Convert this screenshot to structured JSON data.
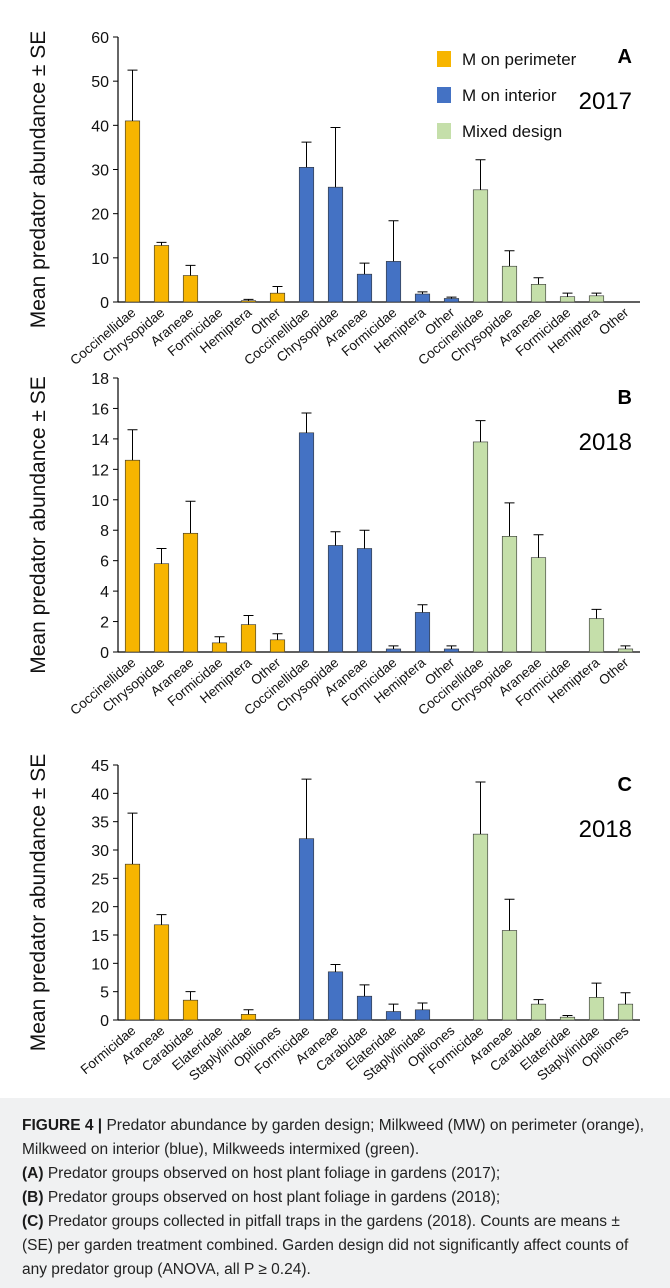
{
  "chart_data": [
    {
      "type": "bar",
      "panel": "A",
      "year": "2017",
      "ylabel": "Mean predator abundance ± SE",
      "ylim": [
        0,
        60
      ],
      "yticks": [
        0,
        10,
        20,
        30,
        40,
        50,
        60
      ],
      "legend": "top-right",
      "series": [
        {
          "name": "M on perimeter",
          "color": "#f7b500",
          "categories": [
            "Coccinellidae",
            "Chrysopidae",
            "Araneae",
            "Formicidae",
            "Hemiptera",
            "Other"
          ],
          "values": [
            41,
            12.8,
            6,
            0,
            0.3,
            2
          ],
          "errors": [
            11.5,
            0.7,
            2.3,
            0,
            0.3,
            1.5
          ]
        },
        {
          "name": "M on interior",
          "color": "#4472c4",
          "categories": [
            "Coccinellidae",
            "Chrysopidae",
            "Araneae",
            "Formicidae",
            "Hemiptera",
            "Other"
          ],
          "values": [
            30.5,
            26,
            6.3,
            9.2,
            1.8,
            0.8
          ],
          "errors": [
            5.7,
            13.5,
            2.5,
            9.2,
            0.5,
            0.3
          ]
        },
        {
          "name": "Mixed design",
          "color": "#c5dfaa",
          "categories": [
            "Coccinellidae",
            "Chrysopidae",
            "Araneae",
            "Formicidae",
            "Hemiptera",
            "Other"
          ],
          "values": [
            25.4,
            8.1,
            4,
            1.2,
            1.4,
            0
          ],
          "errors": [
            6.8,
            3.5,
            1.5,
            0.8,
            0.6,
            0
          ]
        }
      ]
    },
    {
      "type": "bar",
      "panel": "B",
      "year": "2018",
      "ylabel": "Mean predator abundance ± SE",
      "ylim": [
        0,
        18
      ],
      "yticks": [
        0,
        2,
        4,
        6,
        8,
        10,
        12,
        14,
        16,
        18
      ],
      "series": [
        {
          "color": "#f7b500",
          "categories": [
            "Coccinellidae",
            "Chrysopidae",
            "Araneae",
            "Formicidae",
            "Hemiptera",
            "Other"
          ],
          "values": [
            12.6,
            5.8,
            7.8,
            0.6,
            1.8,
            0.8
          ],
          "errors": [
            2.0,
            1.0,
            2.1,
            0.4,
            0.6,
            0.4
          ]
        },
        {
          "color": "#4472c4",
          "categories": [
            "Coccinellidae",
            "Chrysopidae",
            "Araneae",
            "Formicidae",
            "Hemiptera",
            "Other"
          ],
          "values": [
            14.4,
            7.0,
            6.8,
            0.2,
            2.6,
            0.2
          ],
          "errors": [
            1.3,
            0.9,
            1.2,
            0.2,
            0.5,
            0.2
          ]
        },
        {
          "color": "#c5dfaa",
          "categories": [
            "Coccinellidae",
            "Chrysopidae",
            "Araneae",
            "Formicidae",
            "Hemiptera",
            "Other"
          ],
          "values": [
            13.8,
            7.6,
            6.2,
            0,
            2.2,
            0.2
          ],
          "errors": [
            1.4,
            2.2,
            1.5,
            0,
            0.6,
            0.2
          ]
        }
      ]
    },
    {
      "type": "bar",
      "panel": "C",
      "year": "2018",
      "ylabel": "Mean predator abundance ± SE",
      "ylim": [
        0,
        45
      ],
      "yticks": [
        0,
        5,
        10,
        15,
        20,
        25,
        30,
        35,
        40,
        45
      ],
      "series": [
        {
          "color": "#f7b500",
          "categories": [
            "Formicidae",
            "Araneae",
            "Carabidae",
            "Elateridae",
            "Staplylinidae",
            "Opiliones"
          ],
          "values": [
            27.5,
            16.8,
            3.5,
            0,
            1,
            0
          ],
          "errors": [
            9,
            1.8,
            1.5,
            0,
            0.8,
            0
          ]
        },
        {
          "color": "#4472c4",
          "categories": [
            "Formicidae",
            "Araneae",
            "Carabidae",
            "Elateridae",
            "Staplylinidae",
            "Opiliones"
          ],
          "values": [
            32,
            8.5,
            4.2,
            1.5,
            1.8,
            0
          ],
          "errors": [
            10.5,
            1.3,
            2,
            1.3,
            1.2,
            0
          ]
        },
        {
          "color": "#c5dfaa",
          "categories": [
            "Formicidae",
            "Araneae",
            "Carabidae",
            "Elateridae",
            "Staplylinidae",
            "Opiliones"
          ],
          "values": [
            32.8,
            15.8,
            2.8,
            0.5,
            4,
            2.8
          ],
          "errors": [
            9.2,
            5.5,
            0.8,
            0.3,
            2.5,
            2
          ]
        }
      ]
    }
  ],
  "caption": {
    "label": "FIGURE 4 |",
    "text": "Predator abundance by garden design; Milkweed (MW) on perimeter (orange), Milkweed on interior (blue), Milkweeds intermixed (green).",
    "items": [
      {
        "tag": "(A)",
        "text": "Predator groups observed on host plant foliage in gardens (2017);"
      },
      {
        "tag": "(B)",
        "text": "Predator groups observed on host plant foliage in gardens (2018);"
      },
      {
        "tag": "(C)",
        "text": "Predator groups collected in pitfall traps in the gardens (2018). Counts are means ± (SE) per garden treatment combined. Garden design did not significantly affect counts of any predator group (ANOVA, all P ≥ 0.24)."
      }
    ]
  }
}
